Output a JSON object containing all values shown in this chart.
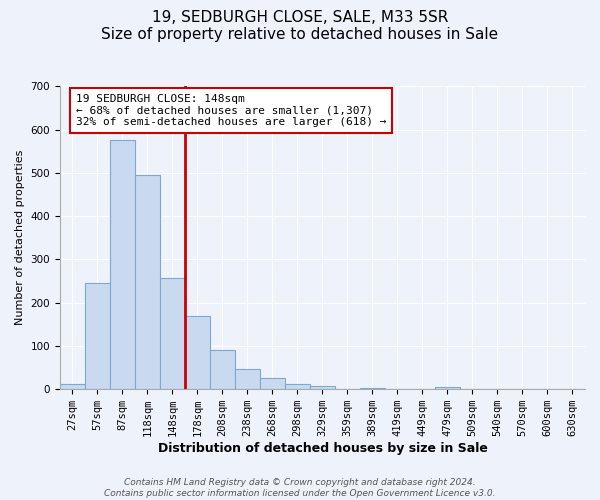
{
  "title": "19, SEDBURGH CLOSE, SALE, M33 5SR",
  "subtitle": "Size of property relative to detached houses in Sale",
  "xlabel": "Distribution of detached houses by size in Sale",
  "ylabel": "Number of detached properties",
  "bar_labels": [
    "27sqm",
    "57sqm",
    "87sqm",
    "118sqm",
    "148sqm",
    "178sqm",
    "208sqm",
    "238sqm",
    "268sqm",
    "298sqm",
    "329sqm",
    "359sqm",
    "389sqm",
    "419sqm",
    "449sqm",
    "479sqm",
    "509sqm",
    "540sqm",
    "570sqm",
    "600sqm",
    "630sqm"
  ],
  "bar_values": [
    12,
    245,
    575,
    495,
    258,
    170,
    90,
    47,
    27,
    13,
    8,
    0,
    3,
    0,
    0,
    5,
    0,
    0,
    0,
    0,
    0
  ],
  "bar_color": "#c9daf0",
  "bar_edge_color": "#7ba8d4",
  "property_line_color": "#cc0000",
  "property_line_bin": 4,
  "annotation_text": "19 SEDBURGH CLOSE: 148sqm\n← 68% of detached houses are smaller (1,307)\n32% of semi-detached houses are larger (618) →",
  "annotation_box_color": "#cc0000",
  "ylim": [
    0,
    700
  ],
  "yticks": [
    0,
    100,
    200,
    300,
    400,
    500,
    600,
    700
  ],
  "background_color": "#eef2fa",
  "plot_bg_color": "#eef2fa",
  "footer_line1": "Contains HM Land Registry data © Crown copyright and database right 2024.",
  "footer_line2": "Contains public sector information licensed under the Open Government Licence v3.0.",
  "title_fontsize": 11,
  "xlabel_fontsize": 9,
  "ylabel_fontsize": 8,
  "tick_fontsize": 7.5,
  "annotation_fontsize": 8,
  "footer_fontsize": 6.5
}
